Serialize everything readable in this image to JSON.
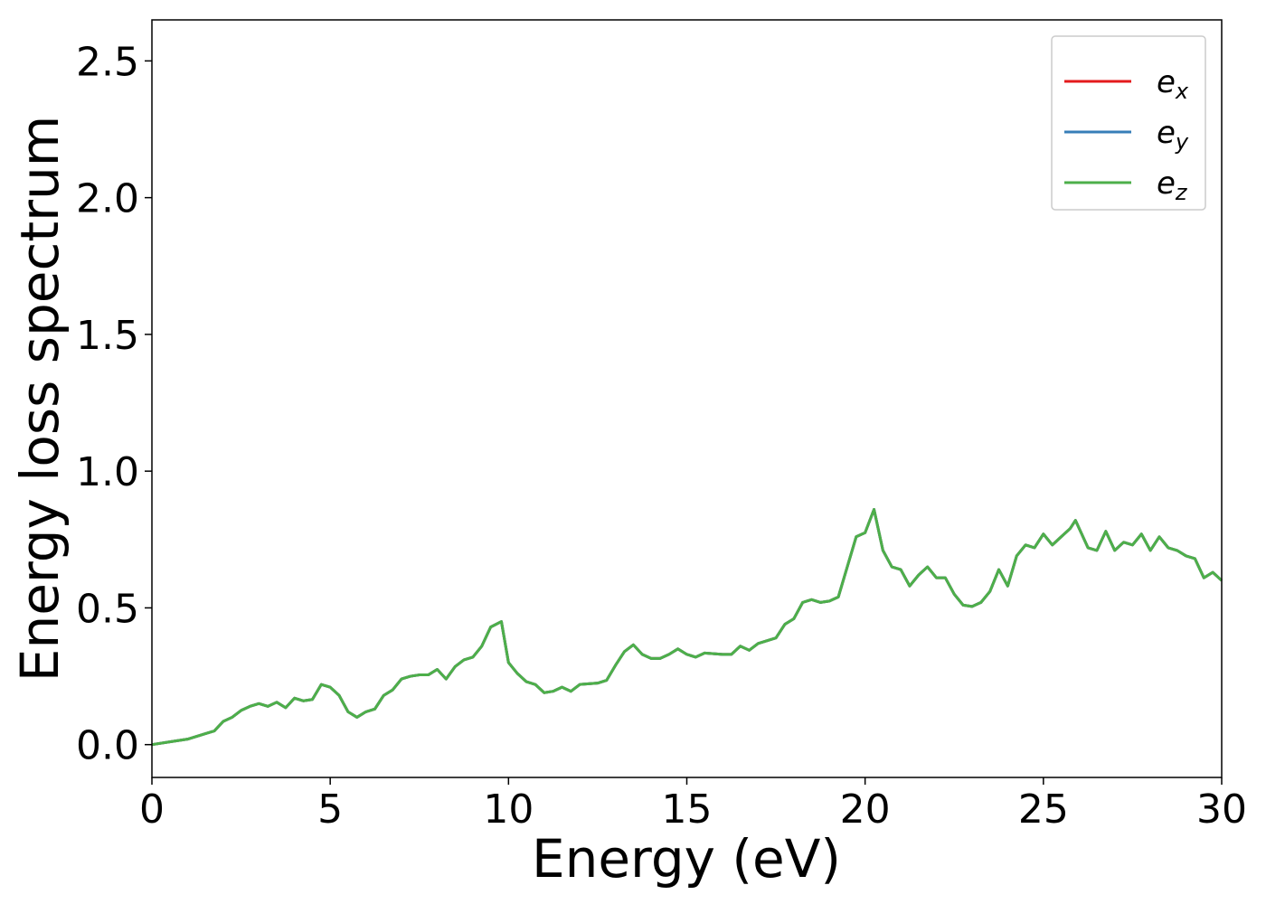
{
  "chart_data": {
    "type": "line",
    "xlabel": "Energy (eV)",
    "ylabel": "Energy loss spectrum",
    "xlim": [
      0,
      30
    ],
    "ylim": [
      -0.12,
      2.65
    ],
    "xticks": [
      0,
      5,
      10,
      15,
      20,
      25,
      30
    ],
    "yticks": [
      {
        "value": 0,
        "label": "0.0"
      },
      0.5,
      {
        "value": 1,
        "label": "1.0"
      },
      1.5,
      {
        "value": 2,
        "label": "2.0"
      },
      2.5
    ],
    "legend": "upper right",
    "x": [
      0,
      0.5,
      1,
      1.5,
      1.75,
      2,
      2.25,
      2.5,
      2.75,
      3,
      3.25,
      3.5,
      3.75,
      4,
      4.25,
      4.5,
      4.75,
      5,
      5.25,
      5.5,
      5.75,
      6,
      6.25,
      6.5,
      6.75,
      7,
      7.25,
      7.5,
      7.75,
      8,
      8.25,
      8.5,
      8.75,
      9,
      9.25,
      9.5,
      9.8,
      10,
      10.25,
      10.5,
      10.75,
      11,
      11.25,
      11.5,
      11.75,
      12,
      12.5,
      12.75,
      13,
      13.25,
      13.5,
      13.75,
      14,
      14.25,
      14.5,
      14.75,
      15,
      15.25,
      15.5,
      16,
      16.25,
      16.5,
      16.75,
      17,
      17.5,
      17.75,
      18,
      18.25,
      18.5,
      18.75,
      19,
      19.25,
      19.5,
      19.75,
      20,
      20.25,
      20.5,
      20.75,
      21,
      21.25,
      21.5,
      21.75,
      22,
      22.25,
      22.5,
      22.75,
      23,
      23.25,
      23.5,
      23.75,
      24,
      24.25,
      24.5,
      24.75,
      25,
      25.25,
      25.5,
      25.75,
      25.9,
      26.25,
      26.5,
      26.75,
      27,
      27.25,
      27.5,
      27.75,
      28,
      28.25,
      28.5,
      28.75,
      29,
      29.25,
      29.5,
      29.75,
      30
    ],
    "series": [
      {
        "name": "ex",
        "color": "#e41a1c",
        "values": [
          0,
          0.01,
          0.02,
          0.04,
          0.05,
          0.085,
          0.1,
          0.125,
          0.14,
          0.15,
          0.14,
          0.155,
          0.135,
          0.17,
          0.16,
          0.165,
          0.22,
          0.21,
          0.18,
          0.12,
          0.1,
          0.12,
          0.13,
          0.18,
          0.2,
          0.24,
          0.25,
          0.255,
          0.255,
          0.275,
          0.24,
          0.285,
          0.31,
          0.32,
          0.36,
          0.43,
          0.45,
          0.3,
          0.26,
          0.23,
          0.22,
          0.19,
          0.195,
          0.21,
          0.195,
          0.22,
          0.225,
          0.235,
          0.29,
          0.34,
          0.365,
          0.33,
          0.315,
          0.315,
          0.33,
          0.35,
          0.33,
          0.32,
          0.335,
          0.33,
          0.33,
          0.36,
          0.345,
          0.37,
          0.39,
          0.44,
          0.46,
          0.52,
          0.53,
          0.52,
          0.525,
          0.54,
          0.65,
          0.76,
          0.775,
          0.86,
          0.71,
          0.65,
          0.64,
          0.58,
          0.62,
          0.65,
          0.61,
          0.61,
          0.55,
          0.51,
          0.505,
          0.52,
          0.56,
          0.64,
          0.58,
          0.69,
          0.73,
          0.72,
          0.77,
          0.73,
          0.76,
          0.79,
          0.82,
          0.72,
          0.71,
          0.78,
          0.71,
          0.74,
          0.73,
          0.77,
          0.71,
          0.76,
          0.72,
          0.71,
          0.69,
          0.68,
          0.61,
          0.63,
          0.6
        ]
      },
      {
        "name": "ey",
        "color": "#377eb8",
        "values": [
          0,
          0.01,
          0.02,
          0.04,
          0.05,
          0.085,
          0.1,
          0.125,
          0.14,
          0.15,
          0.14,
          0.155,
          0.135,
          0.17,
          0.16,
          0.165,
          0.22,
          0.21,
          0.18,
          0.12,
          0.1,
          0.12,
          0.13,
          0.18,
          0.2,
          0.24,
          0.25,
          0.255,
          0.255,
          0.275,
          0.24,
          0.285,
          0.31,
          0.32,
          0.36,
          0.43,
          0.45,
          0.3,
          0.26,
          0.23,
          0.22,
          0.19,
          0.195,
          0.21,
          0.195,
          0.22,
          0.225,
          0.235,
          0.29,
          0.34,
          0.365,
          0.33,
          0.315,
          0.315,
          0.33,
          0.35,
          0.33,
          0.32,
          0.335,
          0.33,
          0.33,
          0.36,
          0.345,
          0.37,
          0.39,
          0.44,
          0.46,
          0.52,
          0.53,
          0.52,
          0.525,
          0.54,
          0.65,
          0.76,
          0.775,
          0.86,
          0.71,
          0.65,
          0.64,
          0.58,
          0.62,
          0.65,
          0.61,
          0.61,
          0.55,
          0.51,
          0.505,
          0.52,
          0.56,
          0.64,
          0.58,
          0.69,
          0.73,
          0.72,
          0.77,
          0.73,
          0.76,
          0.79,
          0.82,
          0.72,
          0.71,
          0.78,
          0.71,
          0.74,
          0.73,
          0.77,
          0.71,
          0.76,
          0.72,
          0.71,
          0.69,
          0.68,
          0.61,
          0.63,
          0.6
        ]
      },
      {
        "name": "ez",
        "color": "#4daf4a",
        "values": [
          0,
          0.01,
          0.02,
          0.04,
          0.05,
          0.085,
          0.1,
          0.125,
          0.14,
          0.15,
          0.14,
          0.155,
          0.135,
          0.17,
          0.16,
          0.165,
          0.22,
          0.21,
          0.18,
          0.12,
          0.1,
          0.12,
          0.13,
          0.18,
          0.2,
          0.24,
          0.25,
          0.255,
          0.255,
          0.275,
          0.24,
          0.285,
          0.31,
          0.32,
          0.36,
          0.43,
          0.45,
          0.3,
          0.26,
          0.23,
          0.22,
          0.19,
          0.195,
          0.21,
          0.195,
          0.22,
          0.225,
          0.235,
          0.29,
          0.34,
          0.365,
          0.33,
          0.315,
          0.315,
          0.33,
          0.35,
          0.33,
          0.32,
          0.335,
          0.33,
          0.33,
          0.36,
          0.345,
          0.37,
          0.39,
          0.44,
          0.46,
          0.52,
          0.53,
          0.52,
          0.525,
          0.54,
          0.65,
          0.76,
          0.775,
          0.86,
          0.71,
          0.65,
          0.64,
          0.58,
          0.62,
          0.65,
          0.61,
          0.61,
          0.55,
          0.51,
          0.505,
          0.52,
          0.56,
          0.64,
          0.58,
          0.69,
          0.73,
          0.72,
          0.77,
          0.73,
          0.76,
          0.79,
          0.82,
          0.72,
          0.71,
          0.78,
          0.71,
          0.74,
          0.73,
          0.77,
          0.71,
          0.76,
          0.72,
          0.71,
          0.69,
          0.68,
          0.61,
          0.63,
          0.6
        ]
      }
    ]
  }
}
